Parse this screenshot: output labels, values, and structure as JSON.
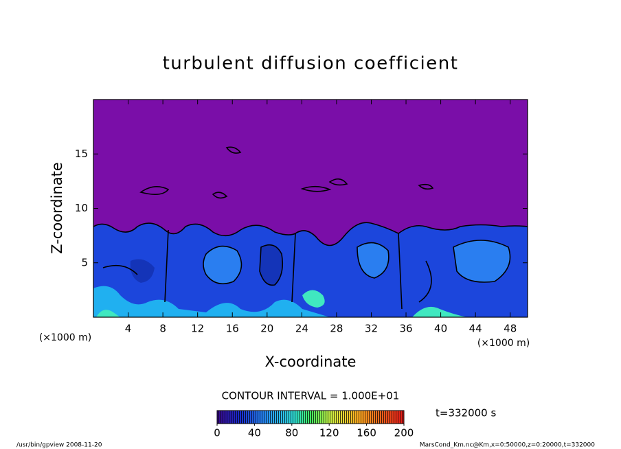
{
  "chart_data": {
    "type": "contour",
    "title": "turbulent diffusion coefficient",
    "x_label": "X-coordinate",
    "y_label": "Z-coordinate",
    "x_unit": "(×1000 m)",
    "xlim": [
      0,
      50
    ],
    "xticks": [
      4,
      8,
      12,
      16,
      20,
      24,
      28,
      32,
      36,
      40,
      44,
      48
    ],
    "ylim": [
      0,
      20
    ],
    "yticks": [
      5,
      10,
      15
    ],
    "contour_interval_label": "CONTOUR INTERVAL = 1.000E+01",
    "time_label": "t=332000 s",
    "colorbar": {
      "lim": [
        0,
        200
      ],
      "ticks": [
        0,
        40,
        80,
        120,
        160,
        200
      ]
    },
    "footer_left": "/usr/bin/gpview  2008-11-20",
    "footer_right": "MarsCond_Km.nc@Km,x=0:50000,z=0:20000,t=332000"
  }
}
